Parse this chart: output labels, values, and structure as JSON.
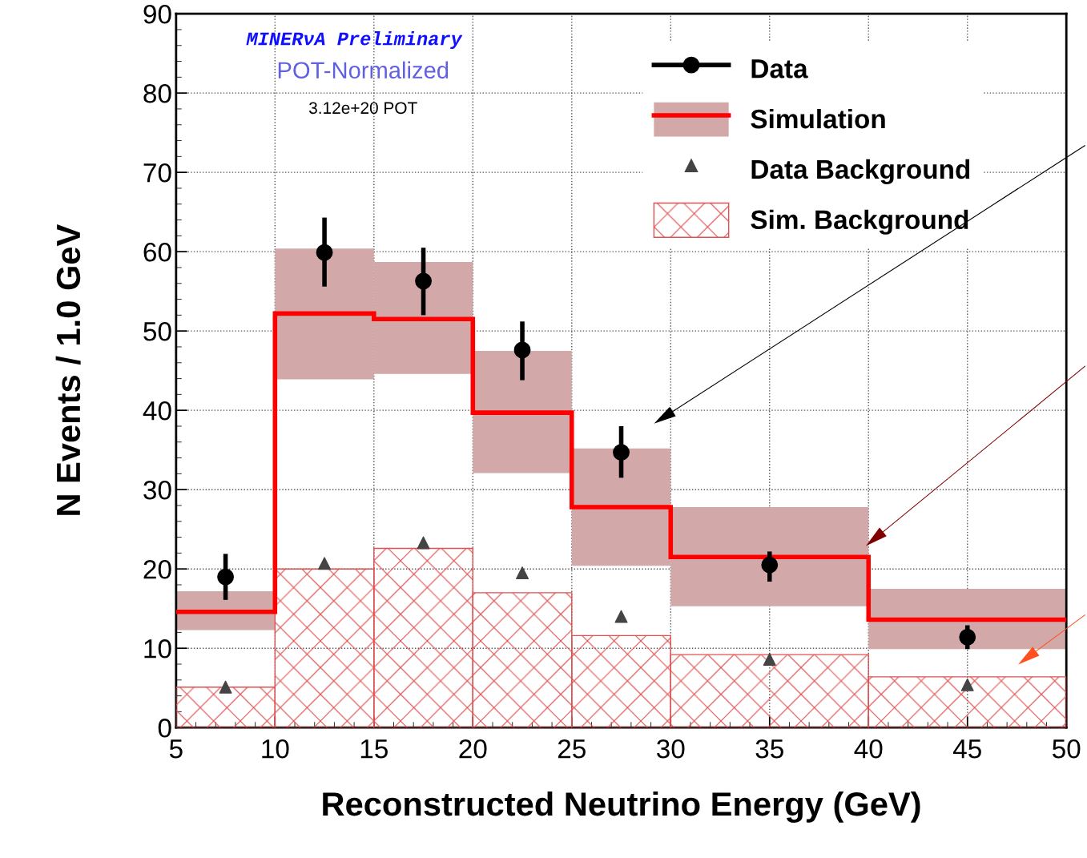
{
  "chart_data": {
    "type": "histogram",
    "xlabel": "Reconstructed Neutrino Energy (GeV)",
    "ylabel": "N Events / 1.0 GeV",
    "annotations": [
      "MINERνA Preliminary",
      "POT-Normalized",
      "3.12e+20 POT"
    ],
    "bins": [
      5,
      10,
      15,
      20,
      25,
      30,
      40,
      50
    ],
    "series": [
      {
        "name": "Data",
        "type": "scatter",
        "color": "#000000",
        "marker": "circle",
        "x": [
          7.5,
          12.5,
          17.5,
          22.5,
          27.5,
          35,
          45
        ],
        "values": [
          19.0,
          59.9,
          56.3,
          47.6,
          34.7,
          20.5,
          11.4
        ],
        "errors": [
          [
            16.1,
            21.9
          ],
          [
            55.6,
            64.3
          ],
          [
            52.0,
            60.5
          ],
          [
            43.8,
            51.2
          ],
          [
            31.5,
            38.0
          ],
          [
            18.4,
            22.2
          ],
          [
            9.9,
            12.9
          ]
        ]
      },
      {
        "type": "bar",
        "color": "#d2a8a8",
        "x": [
          7.5,
          12.5,
          17.5,
          22.5,
          27.5,
          35,
          45
        ],
        "base": [
          12.3,
          43.9,
          44.6,
          32.1,
          20.4,
          15.3,
          9.9
        ],
        "values": [
          4.9,
          16.5,
          14.1,
          15.4,
          14.8,
          12.5,
          7.6
        ]
      },
      {
        "name": "Simulation",
        "line_style": "solid",
        "color": "#ff0000",
        "values": [
          14.6,
          52.2,
          51.5,
          39.7,
          27.8,
          21.5,
          13.6
        ]
      },
      {
        "name": "Data Background",
        "type": "scatter",
        "color": "#444444",
        "marker": "triangle",
        "x": [
          7.5,
          12.5,
          17.5,
          22.5,
          27.5,
          35,
          45
        ],
        "values": [
          5.1,
          20.7,
          23.3,
          19.5,
          14.0,
          8.6,
          5.4
        ]
      },
      {
        "name": "Sim. Background",
        "type": "histogram",
        "color": "#e05050",
        "values": [
          5.1,
          20.0,
          22.6,
          17.0,
          11.6,
          9.2,
          6.4
        ]
      }
    ],
    "xlim": [
      5,
      50
    ],
    "xticks": [
      5,
      10,
      15,
      20,
      25,
      30,
      35,
      40,
      45,
      50
    ],
    "ylim": [
      0,
      90
    ],
    "yticks": [
      0,
      10,
      20,
      30,
      40,
      50,
      60,
      70,
      80,
      90
    ],
    "grid": true,
    "legend": "top right"
  }
}
